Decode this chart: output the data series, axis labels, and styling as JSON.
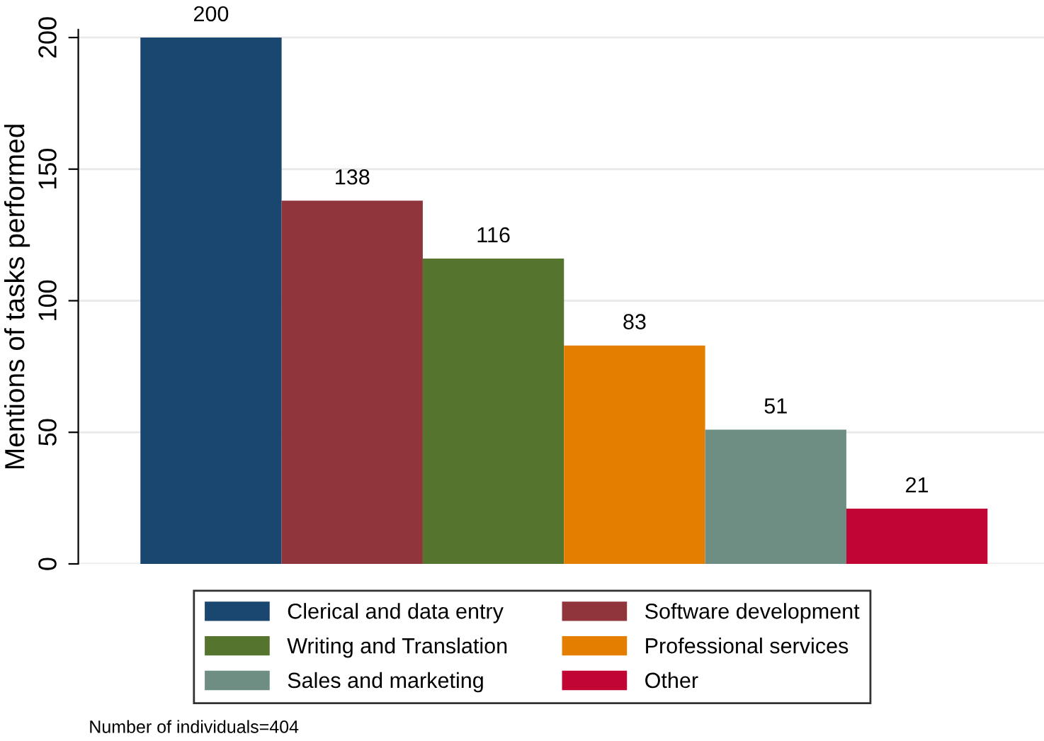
{
  "chart_data": {
    "type": "bar",
    "ylabel": "Mentions of tasks performed",
    "categories": [
      null,
      null,
      null,
      null,
      null,
      null
    ],
    "series": [
      {
        "name": "Clerical and data entry",
        "color": "#1a476f",
        "values": [
          200,
          null,
          null,
          null,
          null,
          null
        ]
      },
      {
        "name": "Software development",
        "color": "#90353b",
        "values": [
          null,
          138,
          null,
          null,
          null,
          null
        ]
      },
      {
        "name": "Writing and Translation",
        "color": "#55752f",
        "values": [
          null,
          null,
          116,
          null,
          null,
          null
        ]
      },
      {
        "name": "Professional services",
        "color": "#e37e00",
        "values": [
          null,
          null,
          null,
          83,
          null,
          null
        ]
      },
      {
        "name": "Sales and marketing",
        "color": "#6e8e84",
        "values": [
          null,
          null,
          null,
          null,
          51,
          null
        ]
      },
      {
        "name": "Other",
        "color": "#c10534",
        "values": [
          null,
          null,
          null,
          null,
          null,
          21
        ]
      }
    ],
    "ylim": [
      0,
      203
    ],
    "yticks": [
      0,
      50,
      100,
      150,
      200
    ],
    "grid": "y",
    "legend": "bottom",
    "data_labels": true,
    "tick_labels": "y",
    "annotations": [
      "Number of individuals=404"
    ]
  }
}
